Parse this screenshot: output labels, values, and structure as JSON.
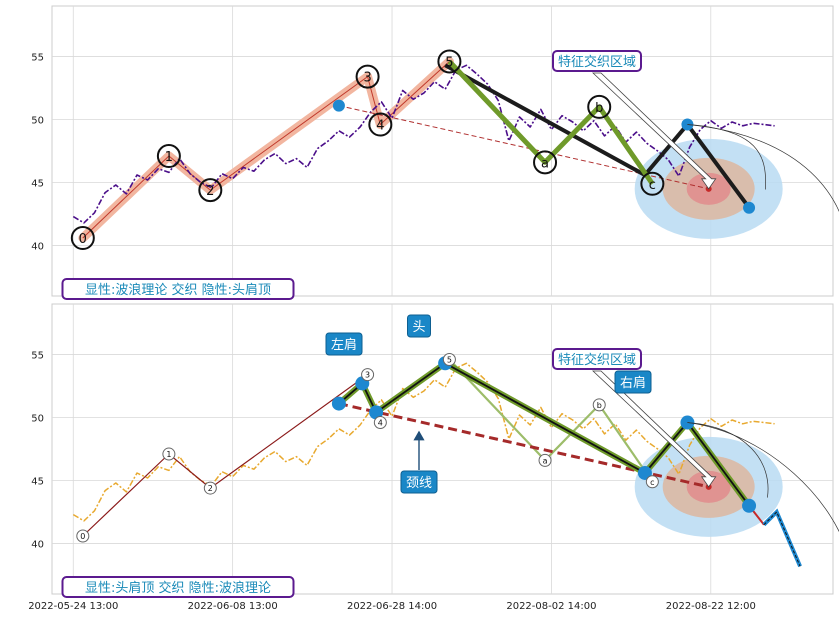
{
  "chart_data": [
    {
      "type": "line",
      "panel": "top",
      "caption": "显性:波浪理论 交织 隐性:头肩顶",
      "callout": "特征交织区域",
      "ylim": [
        36,
        59
      ],
      "yticks": [
        40,
        45,
        50,
        55
      ],
      "grid": true,
      "price_series": {
        "x": [
          0,
          1,
          2,
          3,
          4,
          5,
          6,
          7,
          8,
          9,
          10,
          11,
          12,
          13,
          14,
          15,
          16,
          17,
          18,
          19,
          20,
          21,
          22,
          23,
          24,
          25,
          26,
          27,
          28,
          29,
          30,
          31,
          32,
          33,
          34,
          35,
          36,
          37,
          38,
          39,
          40,
          41,
          42,
          43,
          44,
          45,
          46,
          47,
          48,
          49,
          50,
          51,
          52,
          53,
          54,
          55,
          56,
          57,
          58,
          59,
          60,
          61,
          62,
          63,
          64,
          65,
          66
        ],
        "y": [
          42.3,
          41.8,
          42.6,
          44.2,
          44.8,
          44.1,
          45.6,
          45.2,
          46.1,
          45.8,
          46.9,
          45.7,
          45.0,
          44.6,
          45.7,
          45.3,
          46.2,
          45.9,
          46.8,
          47.3,
          46.5,
          46.9,
          46.2,
          47.7,
          48.3,
          49.1,
          48.6,
          49.4,
          50.6,
          51.4,
          50.1,
          52.3,
          51.6,
          52.1,
          53.0,
          52.4,
          53.9,
          54.3,
          53.6,
          52.8,
          51.5,
          48.3,
          50.2,
          49.4,
          50.8,
          49.2,
          50.3,
          49.8,
          49.1,
          49.9,
          48.7,
          49.5,
          48.2,
          49.0,
          48.1,
          47.5,
          46.8,
          45.5,
          47.8,
          49.2,
          49.9,
          49.3,
          49.8,
          49.5,
          49.7,
          49.6,
          49.5
        ]
      },
      "waves": [
        {
          "label": "0",
          "x": 0.9,
          "y": 40.6
        },
        {
          "label": "1",
          "x": 9.0,
          "y": 47.1
        },
        {
          "label": "2",
          "x": 12.9,
          "y": 44.4
        },
        {
          "label": "3",
          "x": 27.7,
          "y": 53.4
        },
        {
          "label": "4",
          "x": 28.9,
          "y": 49.6
        },
        {
          "label": "5",
          "x": 35.4,
          "y": 54.6
        },
        {
          "label": "a",
          "x": 44.4,
          "y": 46.6
        },
        {
          "label": "b",
          "x": 49.5,
          "y": 51.0
        },
        {
          "label": "c",
          "x": 54.5,
          "y": 44.9
        }
      ],
      "hs_points": [
        {
          "x": 25.0,
          "y": 51.1
        },
        {
          "x": 27.2,
          "y": 52.7
        },
        {
          "x": 28.5,
          "y": 50.4
        },
        {
          "x": 35.0,
          "y": 54.3
        },
        {
          "x": 53.8,
          "y": 45.6
        },
        {
          "x": 57.8,
          "y": 49.6
        },
        {
          "x": 63.6,
          "y": 43.0
        }
      ],
      "neckline": [
        {
          "x": 25.0,
          "y": 51.1
        },
        {
          "x": 59.8,
          "y": 44.5
        }
      ],
      "target_center": {
        "x": 59.8,
        "y": 44.5
      }
    },
    {
      "type": "line",
      "panel": "bottom",
      "caption": "显性:头肩顶 交织 隐性:波浪理论",
      "callout": "特征交织区域",
      "labels": {
        "left_shoulder": "左肩",
        "head": "头",
        "right_shoulder": "右肩",
        "neckline": "颈线"
      },
      "ylim": [
        36,
        59
      ],
      "yticks": [
        40,
        45,
        50,
        55
      ],
      "xtick_labels": [
        "2022-05-24 13:00",
        "2022-06-08 13:00",
        "2022-06-28 14:00",
        "2022-08-02 14:00",
        "2022-08-22 12:00"
      ],
      "xticks": [
        0,
        15,
        30,
        45,
        60
      ],
      "grid": true,
      "hs_points": [
        {
          "x": 25.0,
          "y": 51.1
        },
        {
          "x": 27.2,
          "y": 52.7
        },
        {
          "x": 28.5,
          "y": 50.4
        },
        {
          "x": 35.0,
          "y": 54.3
        },
        {
          "x": 53.8,
          "y": 45.6
        },
        {
          "x": 57.8,
          "y": 49.6
        },
        {
          "x": 63.6,
          "y": 43.0
        }
      ],
      "projection": [
        {
          "x": 63.6,
          "y": 43.0
        },
        {
          "x": 65.0,
          "y": 41.5
        },
        {
          "x": 66.2,
          "y": 42.5
        },
        {
          "x": 68.4,
          "y": 38.2
        }
      ],
      "neckline": [
        {
          "x": 25.0,
          "y": 51.1
        },
        {
          "x": 59.8,
          "y": 44.5
        }
      ]
    }
  ]
}
